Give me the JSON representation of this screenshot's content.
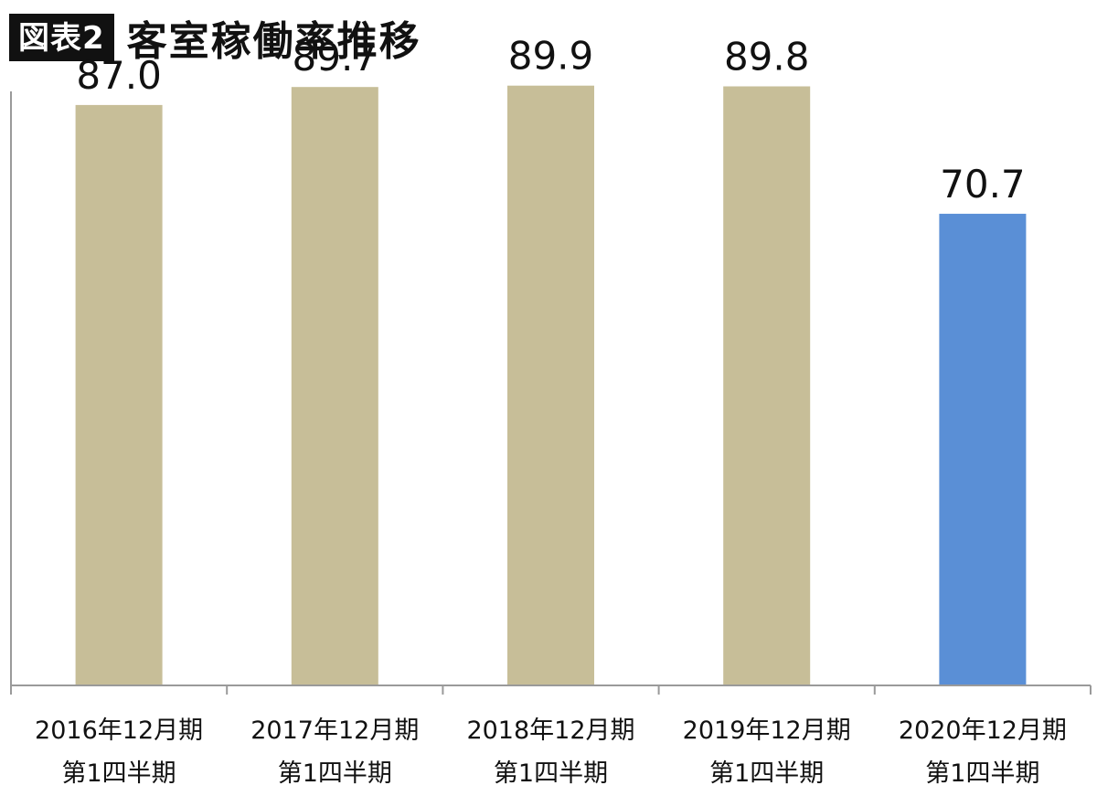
{
  "header": {
    "badge": "図表2",
    "title": "客室稼働率推移"
  },
  "chart_data": {
    "type": "bar",
    "title": "客室稼働率推移",
    "categories": [
      [
        "2016年12月期",
        "第1四半期"
      ],
      [
        "2017年12月期",
        "第1四半期"
      ],
      [
        "2018年12月期",
        "第1四半期"
      ],
      [
        "2019年12月期",
        "第1四半期"
      ],
      [
        "2020年12月期",
        "第1四半期"
      ]
    ],
    "values": [
      87.0,
      89.7,
      89.9,
      89.8,
      70.7
    ],
    "value_labels": [
      "87.0",
      "89.7",
      "89.9",
      "89.8",
      "70.7"
    ],
    "bar_colors": [
      "#c7be98",
      "#c7be98",
      "#c7be98",
      "#c7be98",
      "#5a8fd6"
    ],
    "ylim": [
      0,
      100
    ],
    "grid": false,
    "xlabel": "",
    "ylabel": ""
  }
}
